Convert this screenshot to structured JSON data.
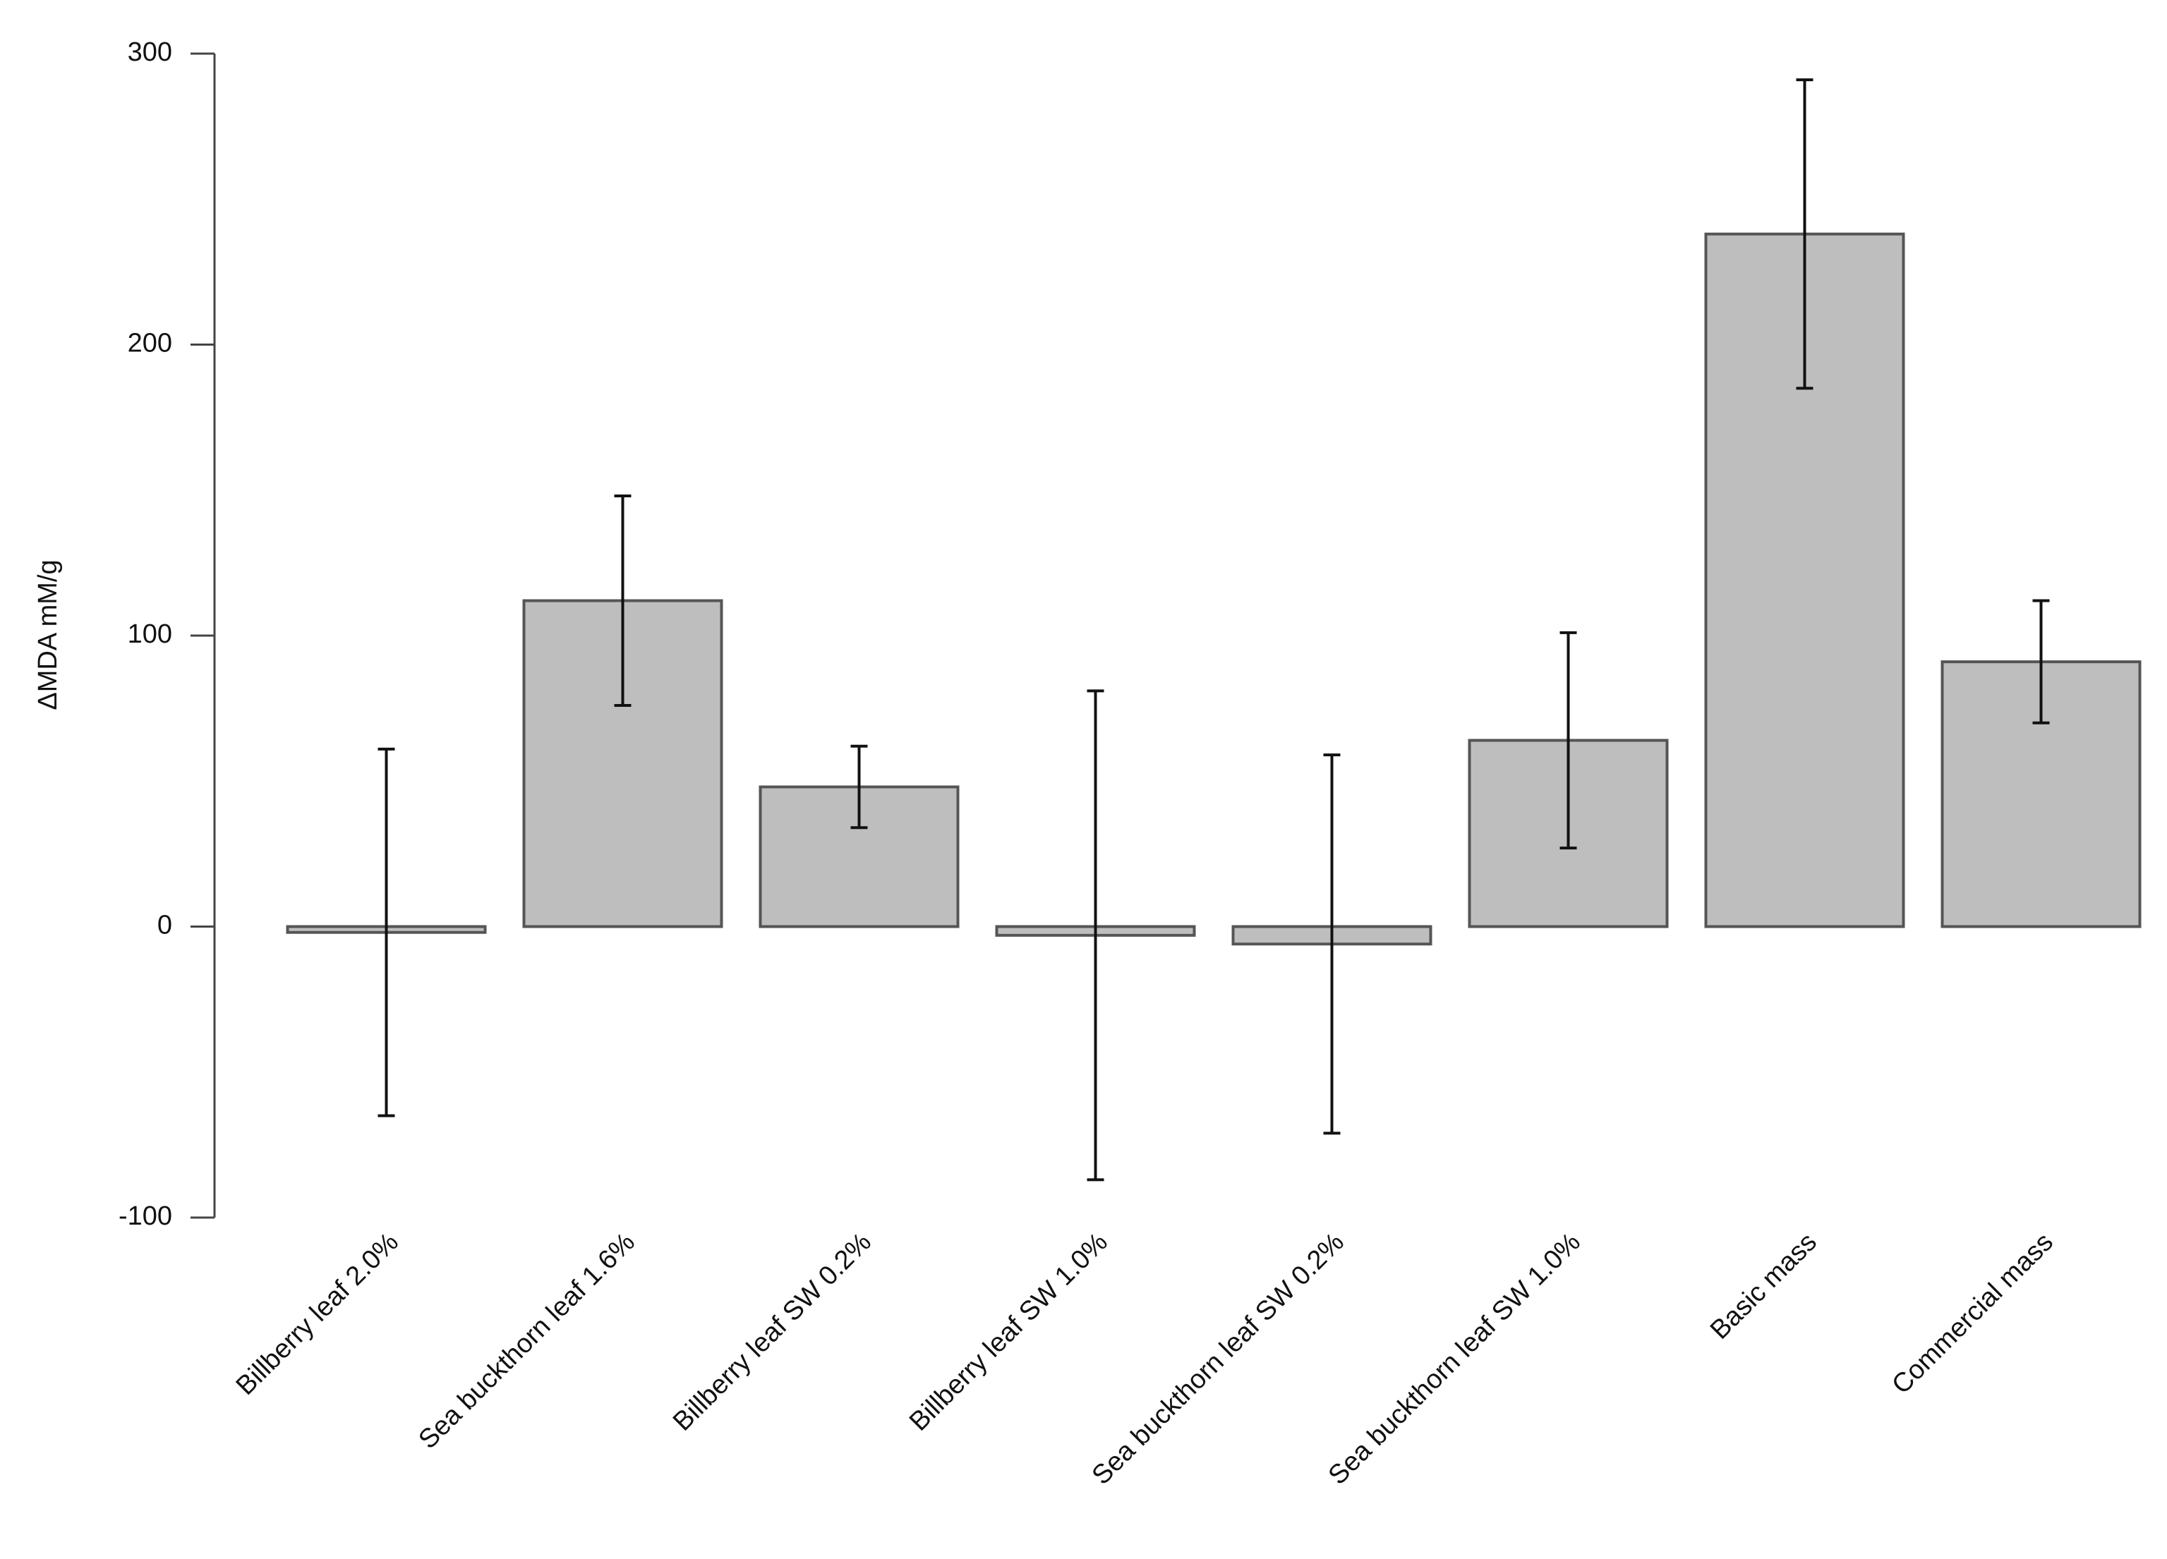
{
  "chart_data": {
    "type": "bar",
    "y_label": "ΔMDA mM/g",
    "categories": [
      "Billberry leaf 2.0%",
      "Sea buckthorn leaf 1.6%",
      "Billberry leaf SW 0.2%",
      "Billberry leaf SW 1.0%",
      "Sea buckthorn leaf SW 0.2%",
      "Sea buckthorn leaf SW 1.0%",
      "Basic mass",
      "Commercial mass"
    ],
    "values": [
      -2,
      112,
      48,
      -3,
      -6,
      64,
      238,
      91
    ],
    "errors": [
      63,
      36,
      14,
      84,
      65,
      37,
      53,
      21
    ],
    "color": "#bebebe",
    "ylim": [
      -100,
      300
    ],
    "yticks": [
      -100,
      0,
      100,
      200,
      300
    ],
    "grid": false
  }
}
